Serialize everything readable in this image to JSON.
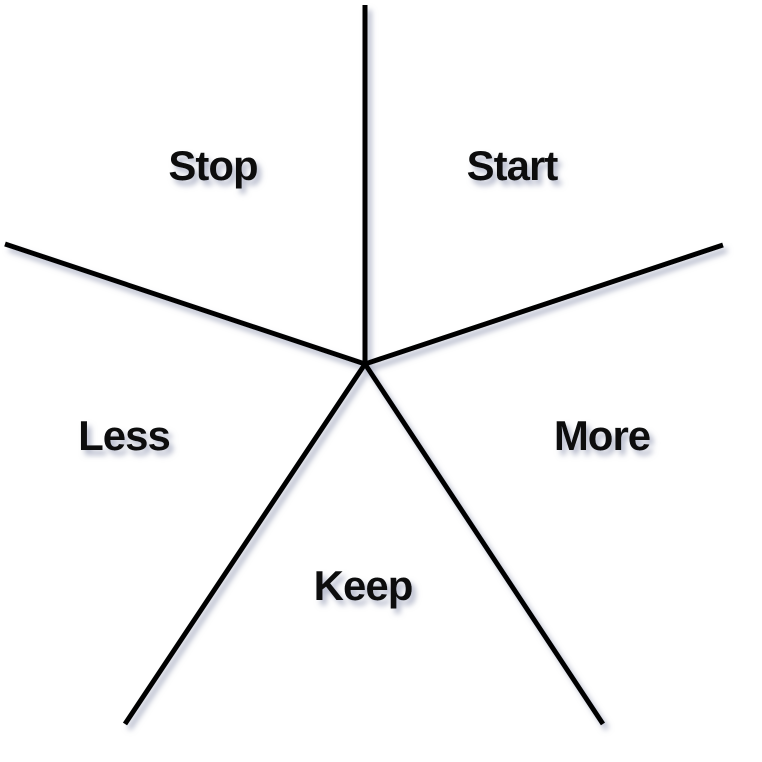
{
  "diagram": {
    "segments": [
      {
        "id": "stop",
        "label": "Stop"
      },
      {
        "id": "start",
        "label": "Start"
      },
      {
        "id": "less",
        "label": "Less"
      },
      {
        "id": "more",
        "label": "More"
      },
      {
        "id": "keep",
        "label": "Keep"
      }
    ],
    "line_color": "#000000",
    "text_color": "#111111",
    "shadow_color": "#9aa0b8"
  }
}
